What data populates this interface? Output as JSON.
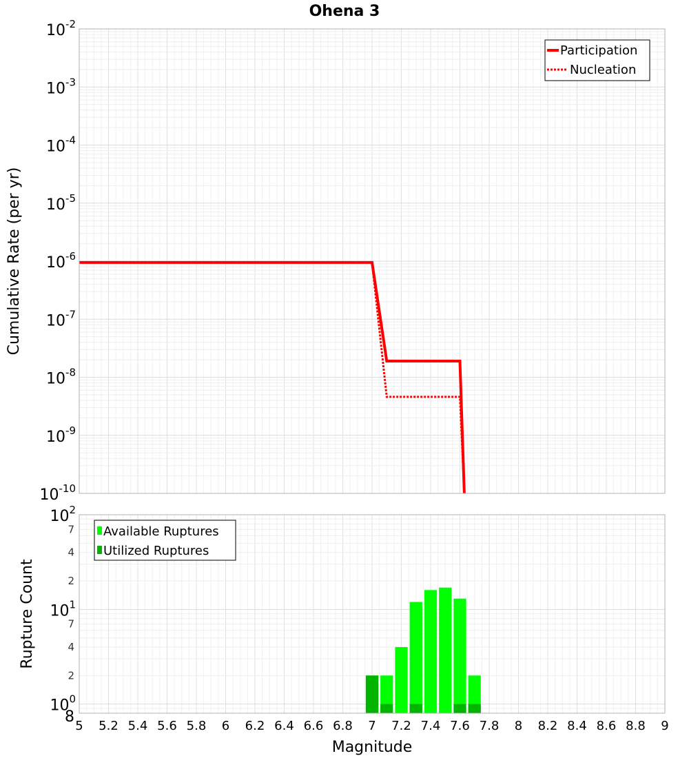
{
  "chart_data": [
    {
      "type": "line",
      "title": "Ohena 3",
      "xlabel": "Magnitude",
      "ylabel": "Cumulative Rate (per yr)",
      "xlim": [
        5,
        9
      ],
      "ylim": [
        1e-10,
        0.01
      ],
      "yscale": "log",
      "grid": true,
      "legend_position": "top-right",
      "x_ticks": [
        "5",
        "5.2",
        "5.4",
        "5.6",
        "5.8",
        "6",
        "6.2",
        "6.4",
        "6.6",
        "6.8",
        "7",
        "7.2",
        "7.4",
        "7.6",
        "7.8",
        "8",
        "8.2",
        "8.4",
        "8.6",
        "8.8",
        "9"
      ],
      "y_decades": [
        {
          "base": "10",
          "exp": "-2"
        },
        {
          "base": "10",
          "exp": "-3"
        },
        {
          "base": "10",
          "exp": "-4"
        },
        {
          "base": "10",
          "exp": "-5"
        },
        {
          "base": "10",
          "exp": "-6"
        },
        {
          "base": "10",
          "exp": "-7"
        },
        {
          "base": "10",
          "exp": "-8"
        },
        {
          "base": "10",
          "exp": "-9"
        },
        {
          "base": "10",
          "exp": "-10"
        }
      ],
      "series": [
        {
          "name": "Participation",
          "color": "#ff0000",
          "style": "solid",
          "x": [
            5.0,
            7.0,
            7.1,
            7.6,
            7.63
          ],
          "y": [
            9.5e-07,
            9.5e-07,
            1.9e-08,
            1.9e-08,
            1e-10
          ]
        },
        {
          "name": "Nucleation",
          "color": "#ff0000",
          "style": "dotted",
          "x": [
            5.0,
            7.0,
            7.1,
            7.6,
            7.63
          ],
          "y": [
            9.5e-07,
            9.5e-07,
            4.6e-09,
            4.6e-09,
            1e-10
          ]
        }
      ]
    },
    {
      "type": "bar",
      "xlabel": "Magnitude",
      "ylabel": "Rupture Count",
      "xlim": [
        5,
        9
      ],
      "ylim": [
        0.8,
        100
      ],
      "yscale": "log",
      "grid": true,
      "legend_position": "top-left",
      "bin_width": 0.1,
      "y_decades": [
        {
          "base": "10",
          "exp": "2"
        },
        {
          "base": "10",
          "exp": "1"
        },
        {
          "base": "10",
          "exp": "0"
        }
      ],
      "y_minor_labels": [
        "7",
        "4",
        "2",
        "7",
        "4",
        "2",
        "8"
      ],
      "bin_centers": [
        7.0,
        7.1,
        7.2,
        7.3,
        7.4,
        7.5,
        7.6,
        7.7
      ],
      "series": [
        {
          "name": "Available Ruptures",
          "color": "#00ff00",
          "values": [
            2,
            2,
            4,
            12,
            16,
            17,
            13,
            2
          ]
        },
        {
          "name": "Utilized Ruptures",
          "color": "#00b400",
          "values": [
            2,
            1,
            0,
            1,
            0,
            0,
            1,
            1
          ]
        }
      ]
    }
  ]
}
